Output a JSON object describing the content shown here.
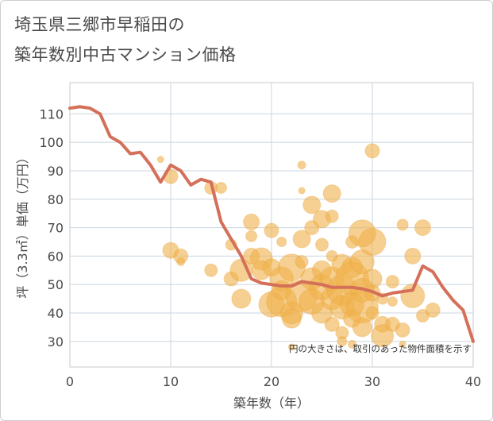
{
  "chart_data": {
    "type": "scatter",
    "title_lines": [
      "埼玉県三郷市早稲田の",
      "築年数別中古マンション価格"
    ],
    "xlabel": "築年数（年）",
    "ylabel": "坪（3.3㎡）単価（万円）",
    "note": "円の大きさは、取引のあった物件面積を示す",
    "xlim": [
      0,
      40
    ],
    "ylim": [
      21,
      121
    ],
    "xticks": [
      0,
      10,
      20,
      30,
      40
    ],
    "yticks": [
      30,
      40,
      50,
      60,
      70,
      80,
      90,
      100,
      110
    ],
    "grid": true,
    "colors": {
      "bubble": "#f0b04a",
      "line": "#d4705a"
    },
    "series": [
      {
        "type": "line",
        "points": [
          [
            0,
            112
          ],
          [
            1,
            112.5
          ],
          [
            2,
            112
          ],
          [
            3,
            110
          ],
          [
            4,
            102
          ],
          [
            5,
            100
          ],
          [
            6,
            96
          ],
          [
            7,
            96.5
          ],
          [
            8,
            92
          ],
          [
            9,
            86
          ],
          [
            10,
            92
          ],
          [
            11,
            90
          ],
          [
            12,
            85
          ],
          [
            13,
            87
          ],
          [
            14,
            86
          ],
          [
            15,
            72
          ],
          [
            16,
            66
          ],
          [
            17,
            60
          ],
          [
            18,
            52
          ],
          [
            19,
            50.5
          ],
          [
            20,
            50
          ],
          [
            21,
            49.5
          ],
          [
            22,
            49.5
          ],
          [
            23,
            51
          ],
          [
            24,
            50.5
          ],
          [
            25,
            50
          ],
          [
            26,
            49
          ],
          [
            27,
            49
          ],
          [
            28,
            49
          ],
          [
            29,
            48.5
          ],
          [
            30,
            47.5
          ],
          [
            31,
            46
          ],
          [
            32,
            47
          ],
          [
            33,
            47.5
          ],
          [
            34,
            48
          ],
          [
            35,
            56.5
          ],
          [
            36,
            54.5
          ],
          [
            37,
            49
          ],
          [
            38,
            44.5
          ],
          [
            39,
            41
          ],
          [
            40,
            30
          ]
        ]
      },
      {
        "type": "bubble",
        "points": [
          [
            9,
            94,
            4
          ],
          [
            10,
            88,
            9
          ],
          [
            10,
            62,
            10
          ],
          [
            11,
            60,
            9
          ],
          [
            11,
            58,
            5
          ],
          [
            14,
            84,
            8
          ],
          [
            15,
            84,
            7
          ],
          [
            14,
            55,
            8
          ],
          [
            16,
            64,
            7
          ],
          [
            16,
            52,
            9
          ],
          [
            17,
            55,
            14
          ],
          [
            17,
            45,
            12
          ],
          [
            18,
            60,
            10
          ],
          [
            18,
            72,
            10
          ],
          [
            18,
            67,
            7
          ],
          [
            19,
            59,
            14
          ],
          [
            19,
            55,
            12
          ],
          [
            20,
            69,
            9
          ],
          [
            20,
            56,
            11
          ],
          [
            20,
            43,
            16
          ],
          [
            21,
            44,
            19
          ],
          [
            21,
            52,
            15
          ],
          [
            21,
            48,
            12
          ],
          [
            21,
            65,
            6
          ],
          [
            22,
            40,
            14
          ],
          [
            22,
            56,
            17
          ],
          [
            22,
            38,
            12
          ],
          [
            23,
            92,
            5
          ],
          [
            23,
            83,
            4
          ],
          [
            23,
            66,
            11
          ],
          [
            23,
            58,
            8
          ],
          [
            23,
            46,
            20
          ],
          [
            24,
            78,
            11
          ],
          [
            24,
            70,
            9
          ],
          [
            24,
            52,
            14
          ],
          [
            24,
            44,
            16
          ],
          [
            25,
            73,
            11
          ],
          [
            25,
            64,
            8
          ],
          [
            25,
            55,
            12
          ],
          [
            25,
            49,
            16
          ],
          [
            25,
            40,
            13
          ],
          [
            26,
            82,
            11
          ],
          [
            26,
            74,
            8
          ],
          [
            26,
            60,
            7
          ],
          [
            26,
            52,
            15
          ],
          [
            26,
            45,
            14
          ],
          [
            26,
            36,
            9
          ],
          [
            27,
            57,
            13
          ],
          [
            27,
            48,
            19
          ],
          [
            27,
            42,
            15
          ],
          [
            27,
            33,
            8
          ],
          [
            27,
            30,
            6
          ],
          [
            28,
            65,
            8
          ],
          [
            28,
            56,
            13
          ],
          [
            28,
            52,
            21
          ],
          [
            28,
            43,
            15
          ],
          [
            28,
            38,
            11
          ],
          [
            29,
            68,
            17
          ],
          [
            29,
            58,
            15
          ],
          [
            29,
            48,
            15
          ],
          [
            29,
            42,
            20
          ],
          [
            29,
            35,
            12
          ],
          [
            30,
            97,
            9
          ],
          [
            30,
            65,
            17
          ],
          [
            30,
            52,
            12
          ],
          [
            30,
            47,
            10
          ],
          [
            30,
            40,
            8
          ],
          [
            31,
            45,
            7
          ],
          [
            31,
            36,
            10
          ],
          [
            31,
            32,
            14
          ],
          [
            32,
            51,
            8
          ],
          [
            32,
            44,
            6
          ],
          [
            32,
            36,
            9
          ],
          [
            33,
            71,
            7
          ],
          [
            33,
            34,
            9
          ],
          [
            34,
            60,
            10
          ],
          [
            34,
            46,
            15
          ],
          [
            35,
            70,
            10
          ],
          [
            35,
            39,
            8
          ],
          [
            36,
            41,
            9
          ],
          [
            22,
            28,
            4
          ],
          [
            28,
            29,
            5
          ],
          [
            33,
            29,
            4
          ]
        ]
      }
    ]
  }
}
